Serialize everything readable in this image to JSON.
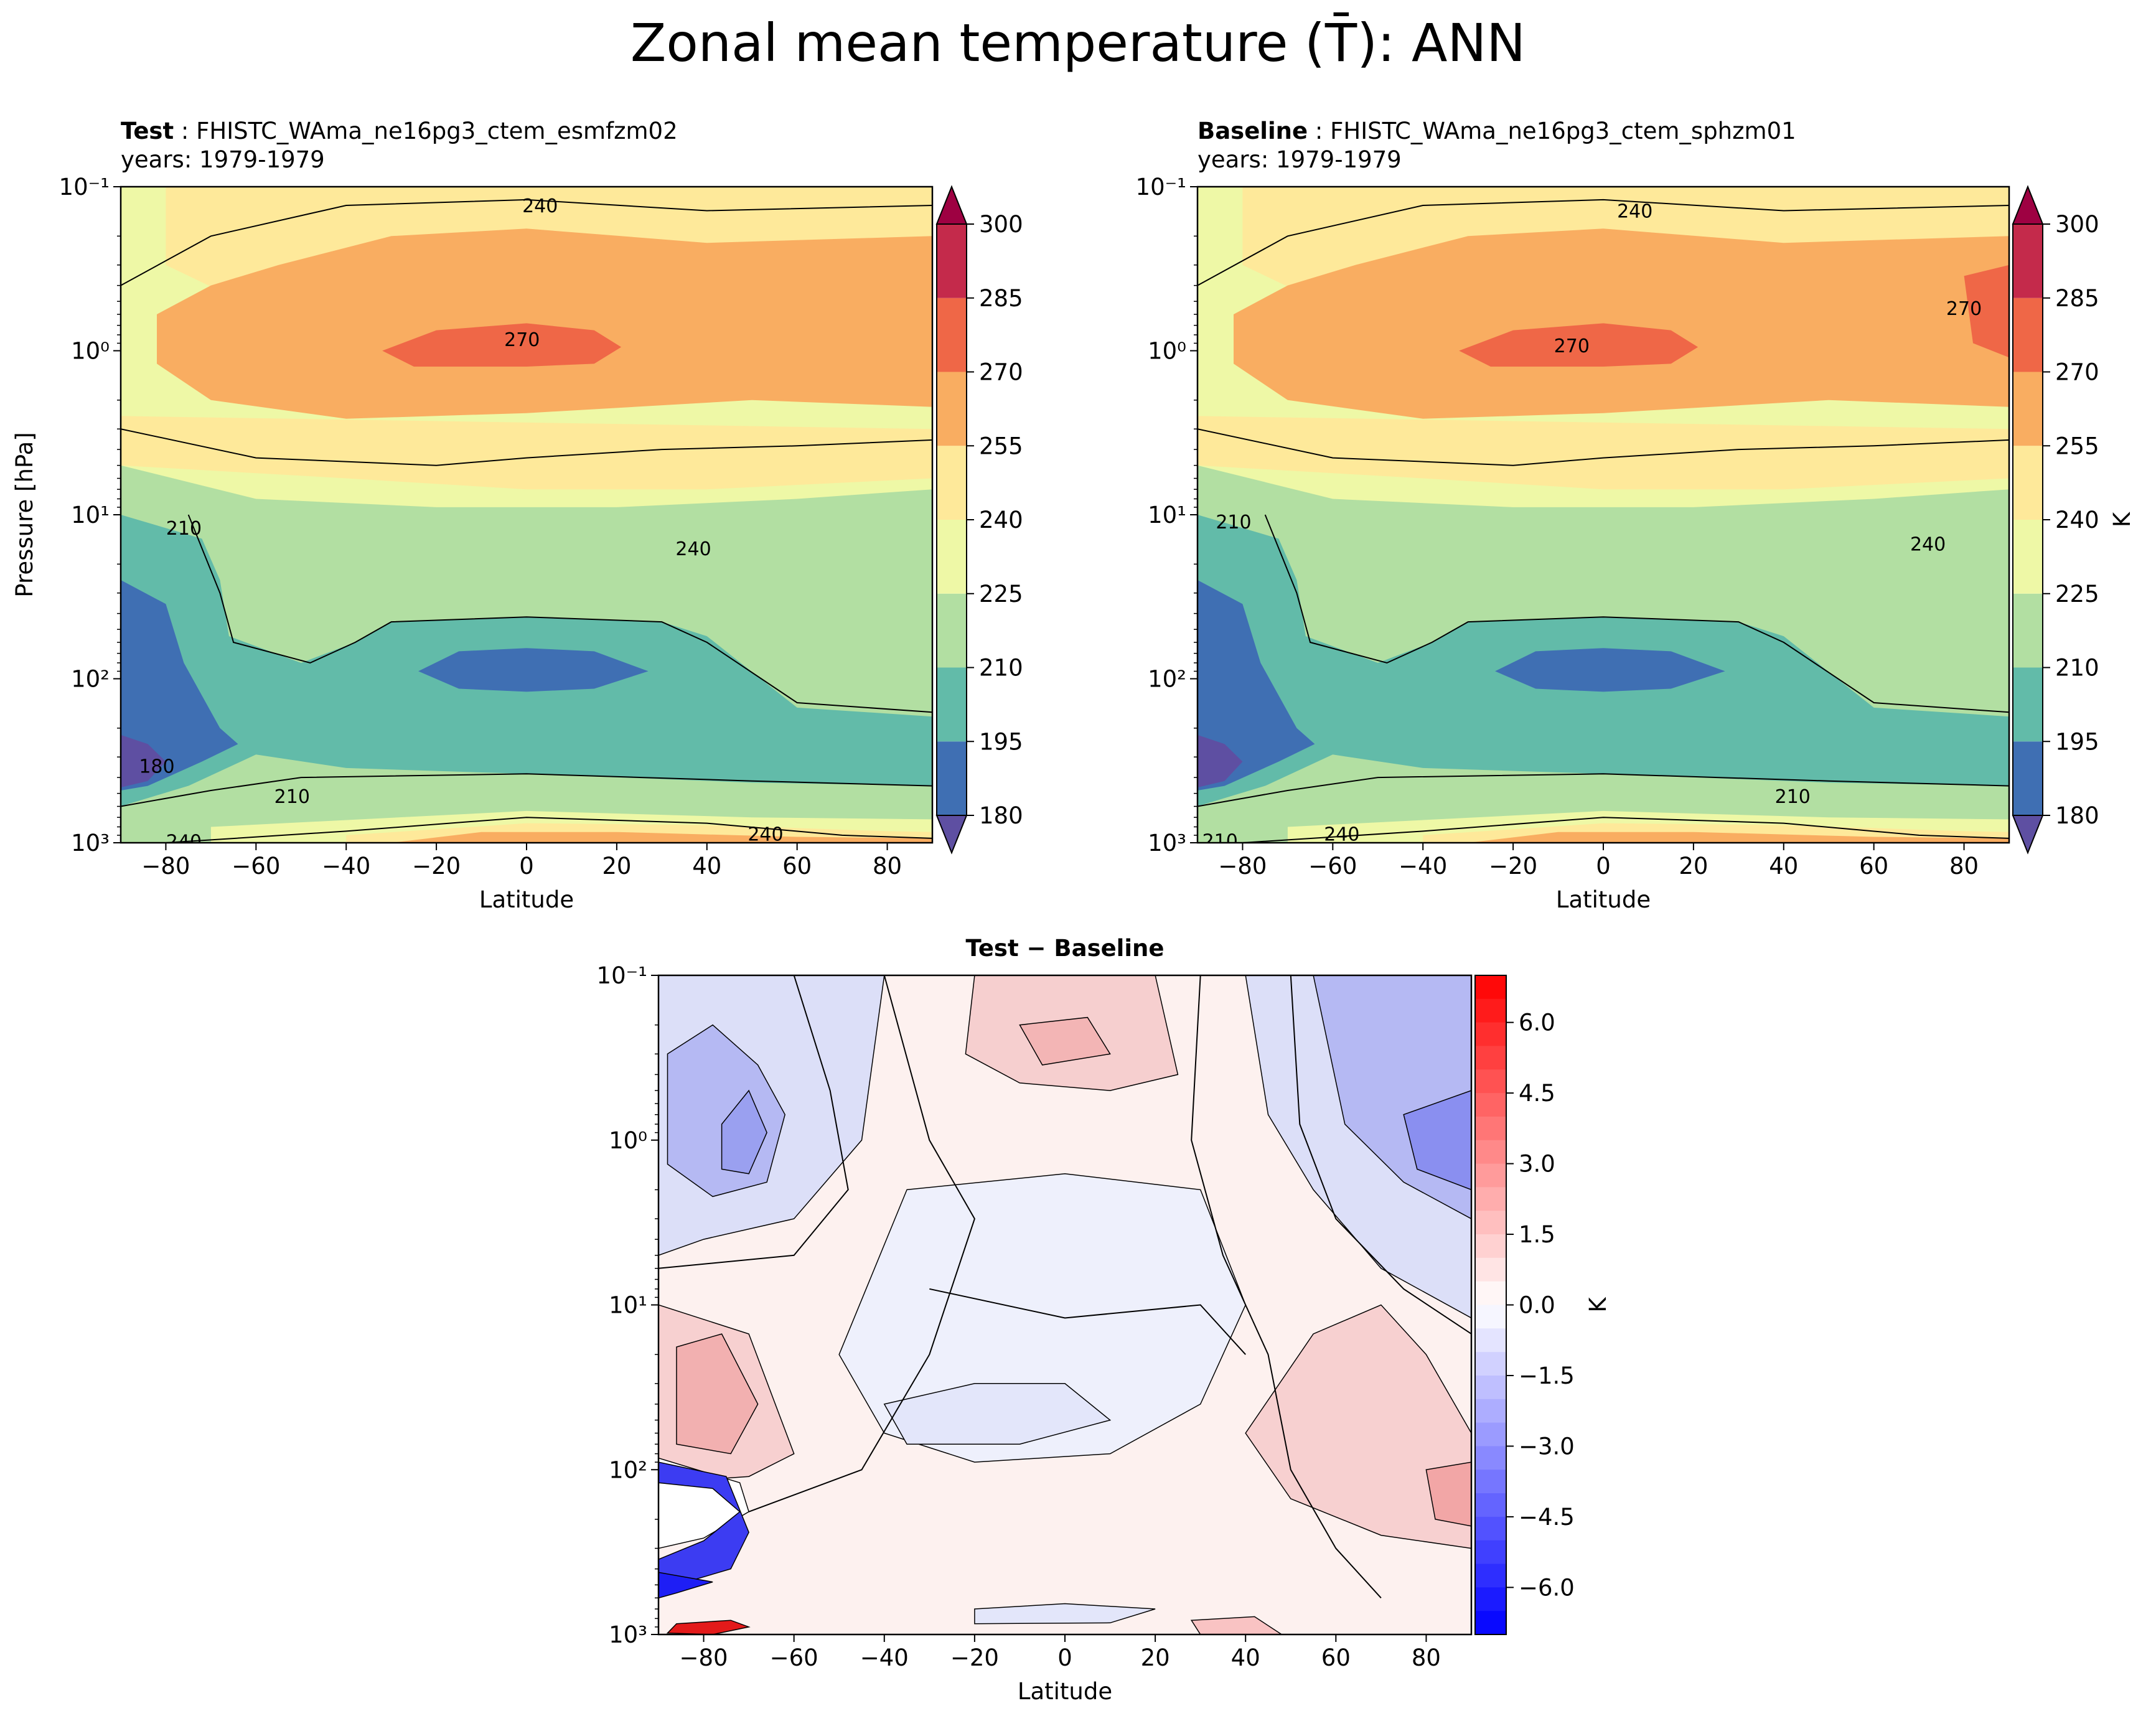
{
  "figure_title": "Zonal mean temperature (T̄): ANN",
  "panels": {
    "test": {
      "prefix": "Test",
      "case": "FHISTC_WAma_ne16pg3_ctem_esmfzm02",
      "years": "years: 1979-1979"
    },
    "baseline": {
      "prefix": "Baseline",
      "case": "FHISTC_WAma_ne16pg3_ctem_sphzm01",
      "years": "years: 1979-1979"
    },
    "diff": {
      "title": "Test − Baseline"
    }
  },
  "colors": {
    "temp_levels": [
      "#5e4fa2",
      "#3f6fb3",
      "#62bba9",
      "#b2dfa2",
      "#eef8a6",
      "#fee99a",
      "#f9ad61",
      "#ef6747",
      "#c42a4b",
      "#9e0142"
    ],
    "diff_pos": "#ff0000",
    "diff_neg": "#0000ff"
  },
  "chart_data": [
    {
      "type": "contour",
      "name": "test",
      "title": "Test: FHISTC_WAma_ne16pg3_ctem_esmfzm02",
      "xlabel": "Latitude",
      "ylabel": "Pressure [hPa]",
      "xlim": [
        -90,
        90
      ],
      "ylim": [
        1000,
        0.1
      ],
      "yscale": "log",
      "x_ticks": [
        "−80",
        "−60",
        "−40",
        "−20",
        "0",
        "20",
        "40",
        "60",
        "80"
      ],
      "y_ticks": [
        "10⁻¹",
        "10⁰",
        "10¹",
        "10²",
        "10³"
      ],
      "colorbar_ticks": [
        "180",
        "195",
        "210",
        "225",
        "240",
        "255",
        "270",
        "285",
        "300"
      ],
      "contour_labels": [
        {
          "text": "240",
          "lat": 3,
          "p": 0.13
        },
        {
          "text": "270",
          "lat": -1,
          "p": 0.85
        },
        {
          "text": "240",
          "lat": 37,
          "p": 16
        },
        {
          "text": "210",
          "lat": -76,
          "p": 12
        },
        {
          "text": "180",
          "lat": -82,
          "p": 340
        },
        {
          "text": "210",
          "lat": -52,
          "p": 520
        },
        {
          "text": "240",
          "lat": 53,
          "p": 880
        },
        {
          "text": "240",
          "lat": -76,
          "p": 980
        }
      ],
      "units": "K"
    },
    {
      "type": "contour",
      "name": "baseline",
      "title": "Baseline: FHISTC_WAma_ne16pg3_ctem_sphzm01",
      "xlabel": "Latitude",
      "xlim": [
        -90,
        90
      ],
      "ylim": [
        1000,
        0.1
      ],
      "yscale": "log",
      "x_ticks": [
        "−80",
        "−60",
        "−40",
        "−20",
        "0",
        "20",
        "40",
        "60",
        "80"
      ],
      "y_ticks": [
        "10⁻¹",
        "10⁰",
        "10¹",
        "10²",
        "10³"
      ],
      "colorbar_ticks": [
        "180",
        "195",
        "210",
        "225",
        "240",
        "255",
        "270",
        "285",
        "300"
      ],
      "colorbar_label": "K",
      "contour_labels": [
        {
          "text": "240",
          "lat": 7,
          "p": 0.14
        },
        {
          "text": "270",
          "lat": -7,
          "p": 0.93
        },
        {
          "text": "270",
          "lat": 80,
          "p": 0.55
        },
        {
          "text": "240",
          "lat": 72,
          "p": 15
        },
        {
          "text": "210",
          "lat": -82,
          "p": 11
        },
        {
          "text": "210",
          "lat": 42,
          "p": 520
        },
        {
          "text": "240",
          "lat": -58,
          "p": 880
        },
        {
          "text": "210",
          "lat": -85,
          "p": 970
        }
      ],
      "units": "K"
    },
    {
      "type": "contour",
      "name": "difference",
      "title": "Test − Baseline",
      "xlabel": "Latitude",
      "xlim": [
        -90,
        90
      ],
      "ylim": [
        1000,
        0.1
      ],
      "yscale": "log",
      "x_ticks": [
        "−80",
        "−60",
        "−40",
        "−20",
        "0",
        "20",
        "40",
        "60",
        "80"
      ],
      "y_ticks": [
        "10⁻¹",
        "10⁰",
        "10¹",
        "10²",
        "10³"
      ],
      "colorbar_ticks": [
        "6.0",
        "4.5",
        "3.0",
        "1.5",
        "0.0",
        "−1.5",
        "−3.0",
        "−4.5",
        "−6.0"
      ],
      "colorbar_range": [
        -7,
        7
      ],
      "colorbar_label": "K",
      "units": "K"
    }
  ]
}
